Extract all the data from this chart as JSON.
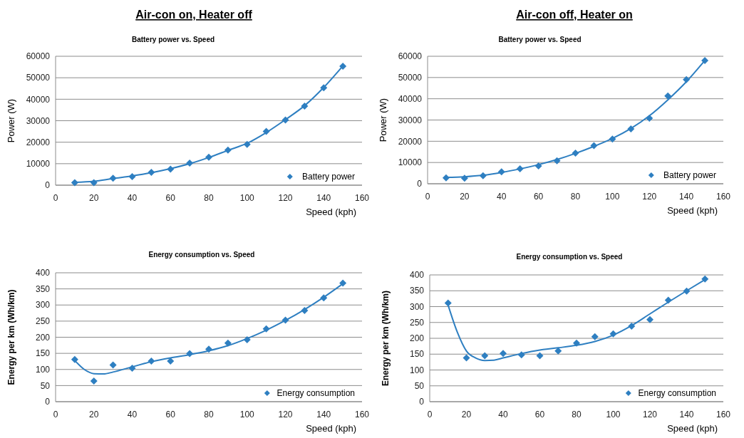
{
  "chart_data": [
    {
      "type": "scatter",
      "title": "Air-con on, Heater off",
      "subtitle": "Battery power vs. Speed",
      "xlabel": "Speed (kph)",
      "ylabel": "Power (W)",
      "xlim": [
        0,
        160
      ],
      "xticks": [
        0,
        20,
        40,
        60,
        80,
        100,
        120,
        140,
        160
      ],
      "ylim": [
        0,
        60000
      ],
      "yticks": [
        0,
        10000,
        20000,
        30000,
        40000,
        50000,
        60000
      ],
      "grid": "y",
      "legend": "bottom right",
      "series": [
        {
          "name": "Battery power",
          "marker": "diamond",
          "color": "#2e7fc1",
          "x": [
            10,
            20,
            30,
            40,
            50,
            60,
            70,
            80,
            90,
            100,
            110,
            120,
            130,
            140,
            150
          ],
          "values": [
            1200,
            1200,
            3200,
            4000,
            6000,
            7500,
            10300,
            13000,
            16300,
            19000,
            25000,
            30300,
            36800,
            45300,
            55400
          ]
        },
        {
          "type": "line",
          "marker": "none",
          "color": "#2e7fc1",
          "x": [
            10,
            20,
            30,
            40,
            50,
            60,
            70,
            80,
            90,
            100,
            110,
            120,
            130,
            140,
            150
          ],
          "values": [
            1300,
            1800,
            3100,
            4300,
            5800,
            7700,
            10000,
            12900,
            16200,
            19500,
            24500,
            30500,
            37000,
            45500,
            55500
          ]
        }
      ]
    },
    {
      "type": "scatter",
      "title": "Air-con off, Heater on",
      "subtitle": "Battery power vs. Speed",
      "xlabel": "Speed (kph)",
      "ylabel": "Power (W)",
      "xlim": [
        0,
        160
      ],
      "xticks": [
        0,
        20,
        40,
        60,
        80,
        100,
        120,
        140,
        160
      ],
      "ylim": [
        0,
        60000
      ],
      "yticks": [
        0,
        10000,
        20000,
        30000,
        40000,
        50000,
        60000
      ],
      "grid": "y",
      "legend": "bottom right",
      "series": [
        {
          "name": "Battery power",
          "marker": "diamond",
          "color": "#2e7fc1",
          "x": [
            10,
            20,
            30,
            40,
            50,
            60,
            70,
            80,
            90,
            100,
            110,
            120,
            130,
            140,
            150
          ],
          "values": [
            2800,
            2600,
            3800,
            5600,
            7000,
            8400,
            10800,
            14400,
            17900,
            21000,
            25800,
            30800,
            41300,
            49000,
            58000
          ]
        },
        {
          "type": "line",
          "marker": "none",
          "color": "#2e7fc1",
          "x": [
            10,
            20,
            30,
            40,
            50,
            60,
            70,
            80,
            90,
            100,
            110,
            120,
            130,
            140,
            150
          ],
          "values": [
            3000,
            3300,
            4000,
            5300,
            7000,
            9000,
            11400,
            14300,
            17600,
            21300,
            26000,
            32000,
            39500,
            48000,
            58000
          ]
        }
      ]
    },
    {
      "type": "scatter",
      "title": "Energy consumption vs. Speed",
      "xlabel": "Speed (kph)",
      "ylabel": "Energy per km (Wh/km)",
      "xlim": [
        0,
        160
      ],
      "xticks": [
        0,
        20,
        40,
        60,
        80,
        100,
        120,
        140,
        160
      ],
      "ylim": [
        0,
        400
      ],
      "yticks": [
        0,
        50,
        100,
        150,
        200,
        250,
        300,
        350,
        400
      ],
      "grid": "y",
      "legend": "bottom right",
      "series": [
        {
          "name": "Energy consumption",
          "marker": "diamond",
          "color": "#2e7fc1",
          "x": [
            10,
            20,
            30,
            40,
            50,
            60,
            70,
            80,
            90,
            100,
            110,
            120,
            130,
            140,
            150
          ],
          "values": [
            131,
            64,
            114,
            104,
            126,
            126,
            149,
            163,
            182,
            192,
            226,
            253,
            283,
            322,
            368
          ]
        },
        {
          "type": "line",
          "marker": "none",
          "color": "#2e7fc1",
          "x": [
            10,
            15,
            20,
            25,
            30,
            40,
            50,
            60,
            70,
            80,
            90,
            100,
            110,
            120,
            130,
            140,
            150
          ],
          "values": [
            128,
            100,
            87,
            86,
            92,
            108,
            124,
            136,
            146,
            158,
            174,
            196,
            222,
            252,
            286,
            324,
            366
          ]
        }
      ]
    },
    {
      "type": "scatter",
      "title": "Energy consumption vs. Speed",
      "xlabel": "Speed (kph)",
      "ylabel": "Energy per km (Wh/km)",
      "xlim": [
        0,
        160
      ],
      "xticks": [
        0,
        20,
        40,
        60,
        80,
        100,
        120,
        140,
        160
      ],
      "ylim": [
        0,
        400
      ],
      "yticks": [
        0,
        50,
        100,
        150,
        200,
        250,
        300,
        350,
        400
      ],
      "grid": "y",
      "legend": "bottom right",
      "series": [
        {
          "name": "Energy consumption",
          "marker": "diamond",
          "color": "#2e7fc1",
          "x": [
            10,
            20,
            30,
            40,
            50,
            60,
            70,
            80,
            90,
            100,
            110,
            120,
            130,
            140,
            150
          ],
          "values": [
            311,
            138,
            145,
            152,
            148,
            145,
            160,
            185,
            205,
            214,
            238,
            259,
            320,
            349,
            387
          ]
        },
        {
          "type": "line",
          "marker": "none",
          "color": "#2e7fc1",
          "x": [
            10,
            15,
            20,
            25,
            30,
            35,
            40,
            50,
            60,
            70,
            80,
            90,
            100,
            110,
            120,
            130,
            140,
            150
          ],
          "values": [
            305,
            220,
            160,
            138,
            130,
            131,
            138,
            152,
            163,
            170,
            178,
            190,
            210,
            240,
            277,
            314,
            350,
            385
          ]
        }
      ]
    }
  ]
}
